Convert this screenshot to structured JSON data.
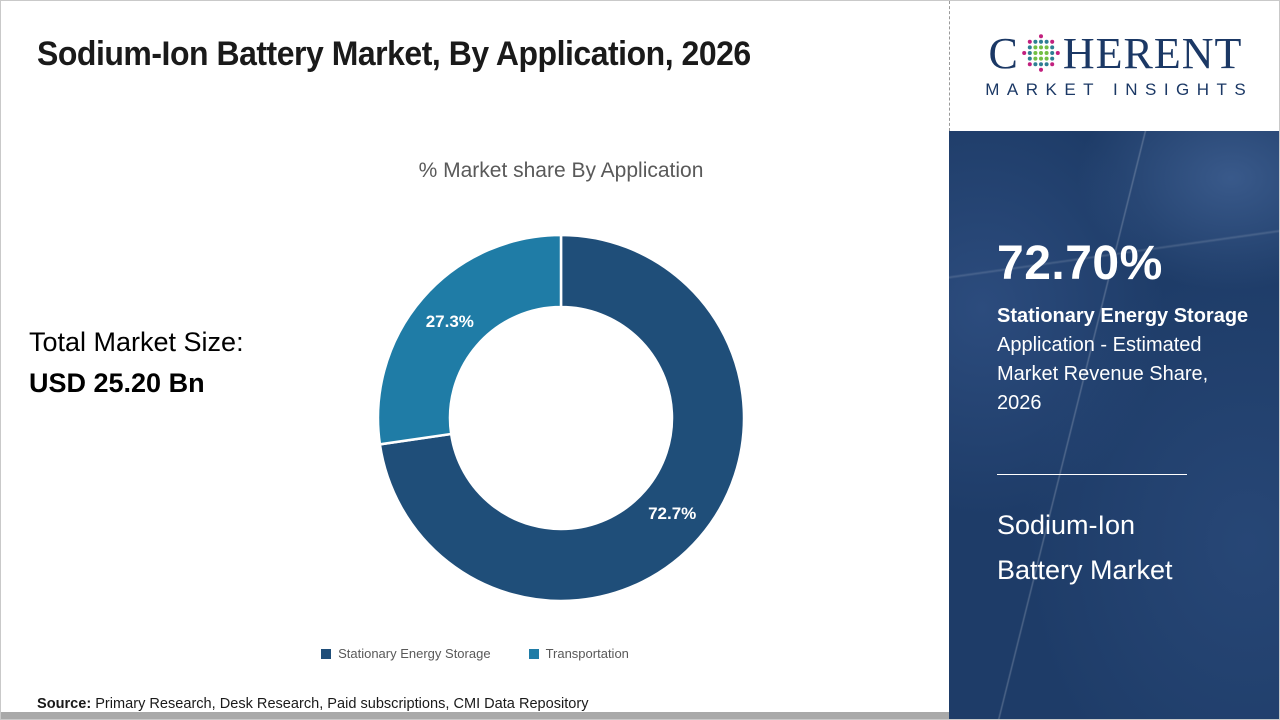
{
  "header": {
    "title": "Sodium-Ion Battery Market, By Application, 2026"
  },
  "logo": {
    "brand_prefix": "C",
    "brand_suffix": "HERENT",
    "subtitle": "MARKET INSIGHTS",
    "navy": "#1B3865",
    "dot_colors": {
      "inner": "#72BF44",
      "middle": "#2E7F93",
      "outer": "#C2207E"
    }
  },
  "chart_data": {
    "type": "pie",
    "donut": true,
    "title": "% Market share By Application",
    "categories": [
      "Stationary Energy Storage",
      "Transportation"
    ],
    "values": [
      72.7,
      27.3
    ],
    "labels": [
      "72.7%",
      "27.3%"
    ],
    "colors": [
      "#1F4E79",
      "#1F7CA6"
    ],
    "legend_position": "bottom",
    "start_angle_deg": 0,
    "direction": "clockwise"
  },
  "total_market": {
    "label": "Total Market Size:",
    "value": "USD 25.20 Bn"
  },
  "source": {
    "label": "Source:",
    "text": " Primary Research, Desk Research, Paid subscriptions, CMI Data Repository"
  },
  "side_panel": {
    "bg_color": "#1E3C68",
    "stat_value": "72.70%",
    "stat_bold": "Stationary Energy Storage",
    "stat_desc": "Application - Estimated Market Revenue Share, 2026",
    "market_name_line1": "Sodium-Ion",
    "market_name_line2": "Battery Market"
  }
}
